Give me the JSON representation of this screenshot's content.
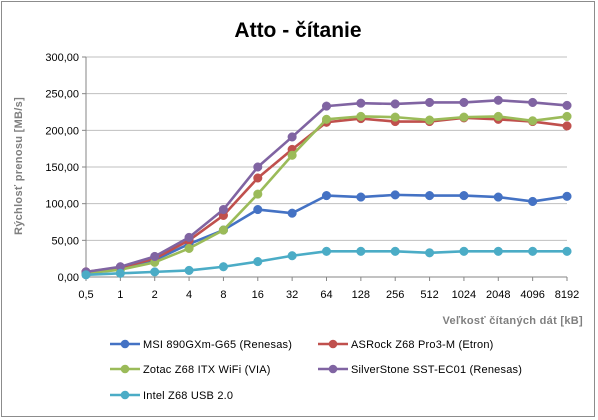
{
  "chart_data": {
    "type": "line",
    "title": "Atto - čítanie",
    "xlabel": "Veľkosť čítaných  dát [kB]",
    "ylabel": "Rýchlosť  prenosu  [MB/s]",
    "categories": [
      "0,5",
      "1",
      "2",
      "4",
      "8",
      "16",
      "32",
      "64",
      "128",
      "256",
      "512",
      "1024",
      "2048",
      "4096",
      "8192"
    ],
    "yticks": [
      "0,00",
      "50,00",
      "100,00",
      "150,00",
      "200,00",
      "250,00",
      "300,00"
    ],
    "ylim": [
      0,
      300
    ],
    "grid": "horizontal",
    "legend": "bottom",
    "series": [
      {
        "name": "MSI 890GXm-G65 (Renesas)",
        "color": "#4472c4",
        "values": [
          6,
          12,
          23,
          45,
          64,
          92,
          87,
          111,
          109,
          112,
          111,
          111,
          109,
          103,
          110
        ]
      },
      {
        "name": "ASRock Z68 Pro3-M (Etron)",
        "color": "#c0504d",
        "values": [
          7,
          13,
          25,
          50,
          84,
          135,
          174,
          211,
          216,
          212,
          212,
          217,
          215,
          212,
          206
        ]
      },
      {
        "name": "Zotac Z68 ITX WiFi (VIA)",
        "color": "#9bbb59",
        "values": [
          5,
          10,
          20,
          39,
          64,
          113,
          166,
          215,
          219,
          218,
          214,
          218,
          219,
          213,
          219
        ]
      },
      {
        "name": "SilverStone SST-EC01 (Renesas)",
        "color": "#8064a2",
        "values": [
          7,
          14,
          28,
          54,
          92,
          150,
          191,
          233,
          237,
          236,
          238,
          238,
          241,
          238,
          234
        ]
      },
      {
        "name": "Intel Z68 USB 2.0",
        "color": "#4bacc6",
        "values": [
          3,
          5,
          7,
          9,
          14,
          21,
          29,
          35,
          35,
          35,
          33,
          35,
          35,
          35,
          35
        ]
      }
    ]
  }
}
